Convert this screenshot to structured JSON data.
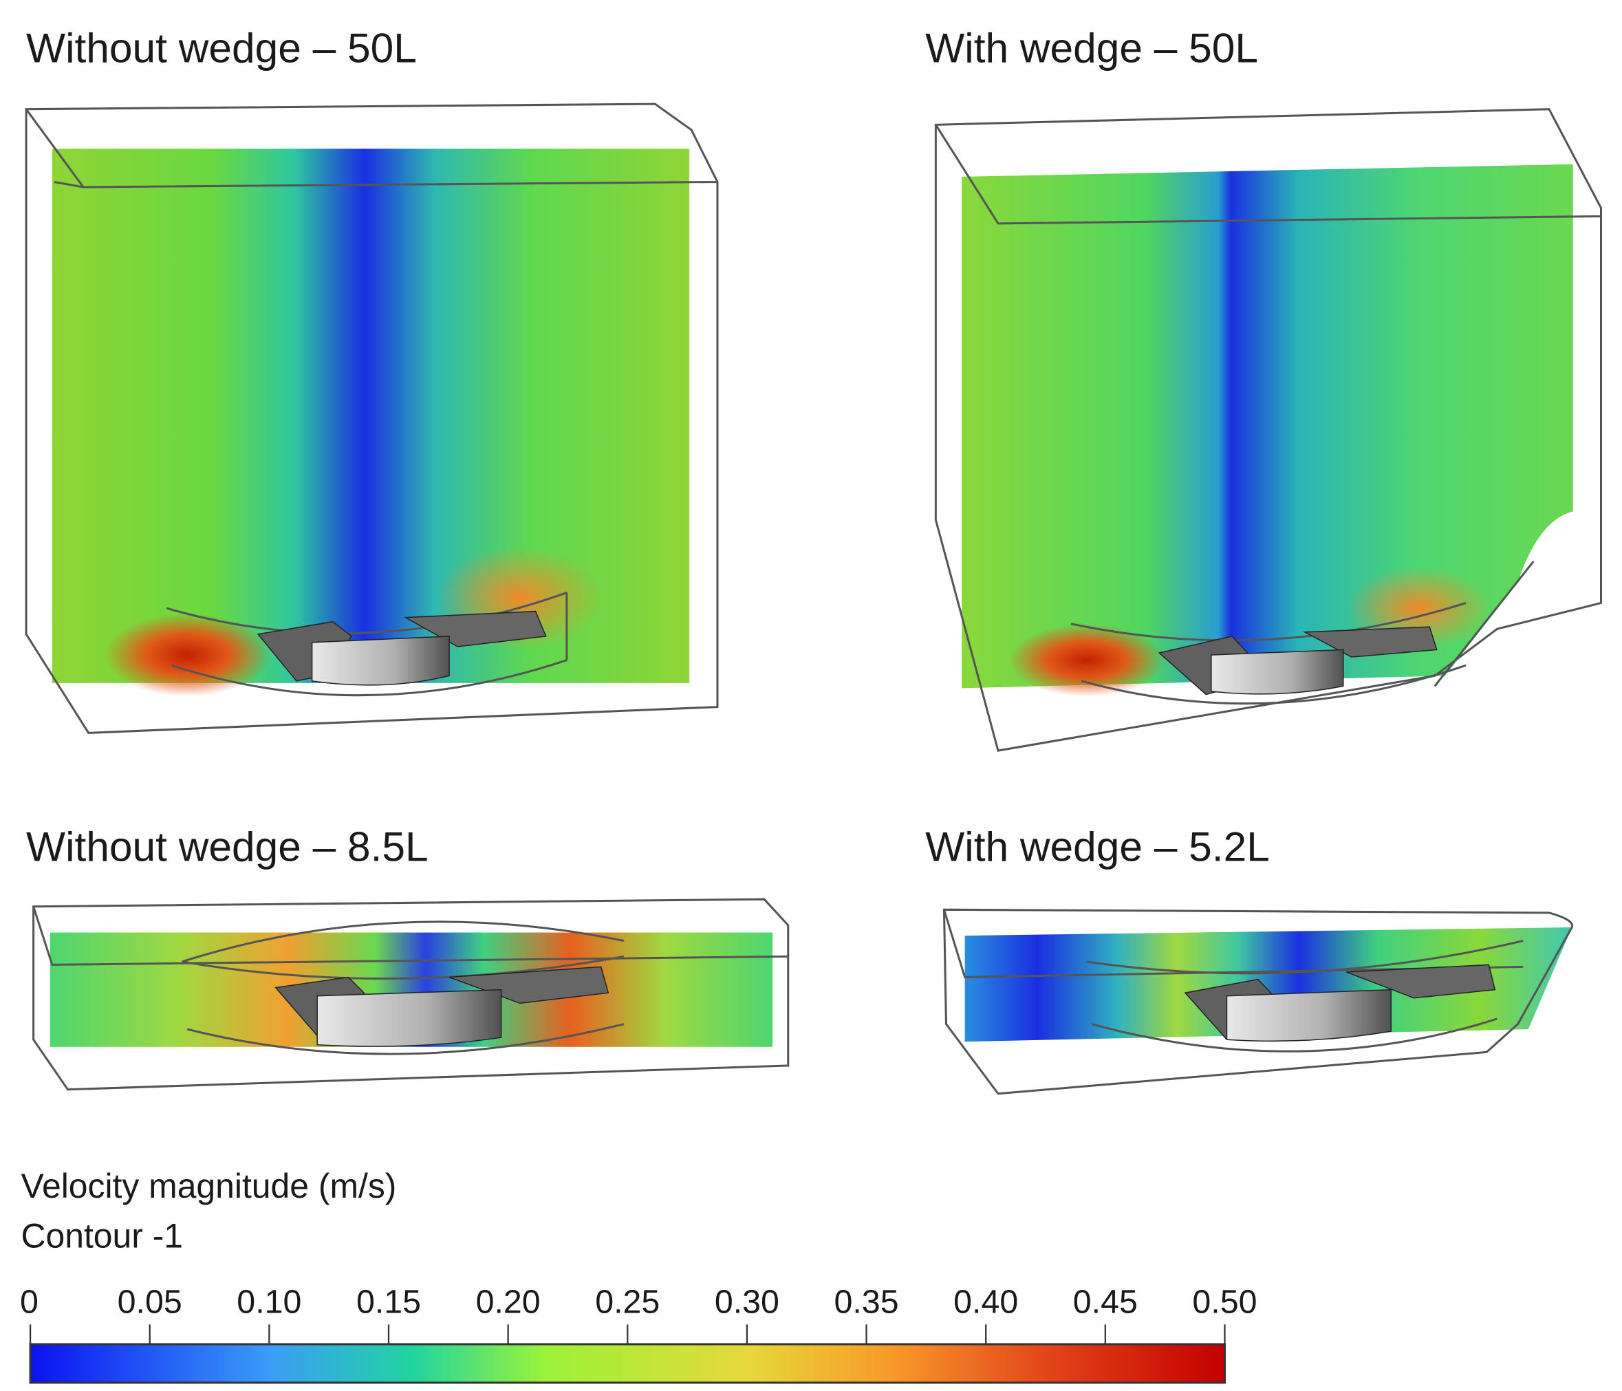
{
  "panels": [
    {
      "title": "Without wedge – 50L"
    },
    {
      "title": "With wedge – 50L"
    },
    {
      "title": "Without wedge – 8.5L"
    },
    {
      "title": "With wedge – 5.2L"
    }
  ],
  "legend": {
    "quantity": "Velocity magnitude (m/s)",
    "contour": "Contour -1",
    "ticks": [
      "0",
      "0.05",
      "0.10",
      "0.15",
      "0.20",
      "0.25",
      "0.30",
      "0.35",
      "0.40",
      "0.45",
      "0.50"
    ],
    "range": [
      0,
      0.5
    ],
    "colormap": [
      "#0a12f0",
      "#3a9cf8",
      "#22d4a0",
      "#9af23a",
      "#e6d83a",
      "#f79a2a",
      "#e2461a",
      "#c40000"
    ]
  }
}
